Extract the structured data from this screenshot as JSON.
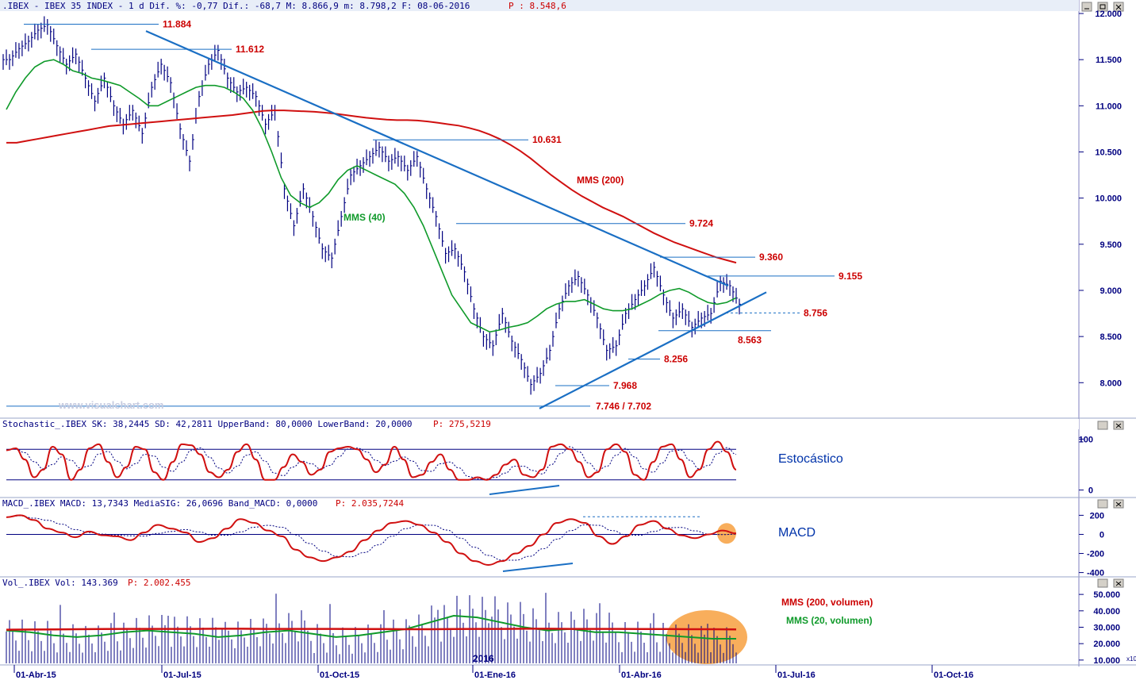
{
  "colors": {
    "price": "#000080",
    "trendline": "#1a6fc4",
    "mms200": "#d01010",
    "mms40": "#0f9a2a",
    "level_label": "#cc0000",
    "header_text": "#000080",
    "header_red": "#cc0000",
    "highlight": "#f7a040"
  },
  "panels": {
    "price": {
      "header_main": ".IBEX - IBEX 35 INDEX -  1 d Dif. %: -0,77 Dif.: -68,7 M: 8.866,9 m: 8.798,2 F: 08-06-2016",
      "header_p": "P : 8.548,6",
      "watermark": "www.visualchart.com"
    },
    "stochastic": {
      "header_main": "Stochastic_.IBEX SK: 38,2445 SD: 42,2811 UpperBand: 80,0000 LowerBand: 20,0000",
      "header_p": "P: 275,5219",
      "label": "Estocástico"
    },
    "macd": {
      "header_main": "MACD_.IBEX MACD: 13,7343 MediaSIG: 26,0696 Band_MACD: 0,0000",
      "header_p": "P: 2.035,7244",
      "label": "MACD"
    },
    "volume": {
      "header_main": "Vol_.IBEX Vol: 143.369",
      "header_p": "P: 2.002.455",
      "legend_200": "MMS (200, volumen)",
      "legend_20": "MMS (20, volumen)",
      "year_marker": "2016",
      "scale_tag": "x10"
    }
  },
  "chart_data": [
    {
      "type": "bar",
      "subtype": "ohlc",
      "title": ".IBEX - IBEX 35 INDEX",
      "x_ticks": [
        "01-Abr-15",
        "01-Jul-15",
        "01-Oct-15",
        "01-Ene-16",
        "01-Abr-16",
        "01-Jul-16",
        "01-Oct-16"
      ],
      "y_ticks": [
        "12.000",
        "11.500",
        "11.000",
        "10.500",
        "10.000",
        "9.500",
        "9.000",
        "8.500",
        "8.000"
      ],
      "ylim": [
        7650,
        12000
      ],
      "close": [
        11500,
        11620,
        11700,
        11820,
        11880,
        11650,
        11450,
        11560,
        11300,
        11050,
        11300,
        11000,
        10800,
        10950,
        10700,
        11200,
        11450,
        11250,
        10750,
        10400,
        11100,
        11450,
        11600,
        11300,
        11150,
        11200,
        11100,
        10800,
        10950,
        10100,
        9700,
        10100,
        9800,
        9450,
        9350,
        9800,
        10250,
        10350,
        10450,
        10550,
        10400,
        10450,
        10300,
        10450,
        10100,
        9800,
        9400,
        9450,
        9200,
        8800,
        8500,
        8400,
        8750,
        8450,
        8250,
        7980,
        8100,
        8350,
        8800,
        9050,
        9150,
        8950,
        8700,
        8350,
        8400,
        8750,
        8900,
        9050,
        9250,
        8950,
        8700,
        8800,
        8600,
        8700,
        8750,
        9100,
        9050,
        8850
      ],
      "series": [
        {
          "name": "MMS (200)",
          "values": [
            10600,
            10600,
            10620,
            10640,
            10660,
            10680,
            10700,
            10720,
            10740,
            10760,
            10780,
            10790,
            10800,
            10810,
            10820,
            10830,
            10840,
            10850,
            10860,
            10870,
            10880,
            10890,
            10900,
            10915,
            10930,
            10945,
            10950,
            10950,
            10945,
            10940,
            10935,
            10925,
            10915,
            10900,
            10885,
            10870,
            10860,
            10850,
            10845,
            10845,
            10840,
            10830,
            10815,
            10800,
            10785,
            10760,
            10730,
            10690,
            10640,
            10580,
            10510,
            10430,
            10340,
            10250,
            10170,
            10090,
            10020,
            9960,
            9900,
            9850,
            9800,
            9740,
            9680,
            9620,
            9570,
            9520,
            9480,
            9440,
            9400,
            9360,
            9330,
            9300
          ]
        },
        {
          "name": "MMS (40)",
          "values": [
            10960,
            11150,
            11300,
            11420,
            11480,
            11500,
            11450,
            11380,
            11350,
            11300,
            11280,
            11250,
            11220,
            11150,
            11080,
            11000,
            11000,
            11050,
            11100,
            11150,
            11200,
            11220,
            11220,
            11200,
            11150,
            11080,
            10950,
            10750,
            10500,
            10220,
            10030,
            9950,
            9900,
            9950,
            10050,
            10200,
            10300,
            10350,
            10300,
            10250,
            10200,
            10150,
            10050,
            9900,
            9700,
            9450,
            9200,
            8950,
            8800,
            8650,
            8600,
            8550,
            8570,
            8600,
            8620,
            8650,
            8720,
            8800,
            8850,
            8880,
            8880,
            8900,
            8850,
            8800,
            8780,
            8780,
            8800,
            8850,
            8900,
            8960,
            9000,
            9020,
            8980,
            8920,
            8870,
            8850,
            8870,
            8920
          ]
        },
        {
          "name": "Estocástico %K",
          "values": [
            78,
            82,
            60,
            25,
            40,
            85,
            70,
            20,
            40,
            82,
            90,
            55,
            25,
            45,
            85,
            80,
            35,
            20,
            55,
            90,
            88,
            70,
            35,
            25,
            40,
            75,
            90,
            60,
            20,
            20,
            45,
            70,
            55,
            30,
            40,
            75,
            82,
            85,
            80,
            60,
            35,
            50,
            85,
            60,
            25,
            30,
            55,
            70,
            40,
            20,
            20,
            25,
            20,
            30,
            50,
            60,
            30,
            25,
            40,
            85,
            90,
            80,
            55,
            25,
            35,
            80,
            90,
            75,
            30,
            20,
            55,
            85,
            90,
            60,
            25,
            40,
            80,
            95,
            75,
            40
          ]
        },
        {
          "name": "MACD",
          "values": [
            180,
            200,
            150,
            60,
            20,
            -30,
            30,
            -10,
            -20,
            -60,
            20,
            100,
            60,
            20,
            -80,
            -40,
            60,
            160,
            120,
            40,
            -20,
            -160,
            -240,
            -280,
            -240,
            -180,
            -60,
            40,
            120,
            140,
            100,
            20,
            -80,
            -200,
            -280,
            -320,
            -280,
            -200,
            -120,
            0,
            120,
            160,
            120,
            -20,
            -100,
            -20,
            100,
            140,
            60,
            -10,
            -40,
            0,
            40,
            10
          ]
        },
        {
          "name": "MMS (200, volumen)",
          "values": [
            28500,
            28600,
            28700,
            28800,
            28900,
            29000,
            29000,
            29000,
            29000,
            29100,
            29100,
            29000,
            29000,
            29000,
            29000,
            28900,
            28900,
            28800,
            28800,
            28900,
            29000,
            29000,
            29100,
            29100,
            29000,
            29000,
            29000,
            28900,
            28900,
            28800,
            28800,
            28700
          ]
        },
        {
          "name": "MMS (20, volumen)",
          "values": [
            28000,
            27000,
            25000,
            24000,
            25000,
            27000,
            28000,
            27000,
            26000,
            24000,
            25000,
            27000,
            28000,
            26000,
            24000,
            25000,
            27000,
            29000,
            33000,
            37000,
            36000,
            33000,
            30000,
            28000,
            29000,
            27000,
            27000,
            26000,
            25000,
            24000,
            23000,
            23000
          ]
        }
      ],
      "annotations": [
        "11.884",
        "11.612",
        "10.631",
        "9.724",
        "9.360",
        "9.155",
        "8.756",
        "8.563",
        "8.256",
        "7.968",
        "7.746 / 7.702",
        "MMS (200)",
        "MMS (40)"
      ]
    },
    {
      "type": "line",
      "title": "Stochastic_.IBEX",
      "y_ticks": [
        "100",
        "0"
      ],
      "ylim": [
        -10,
        110
      ],
      "bands": [
        80,
        20
      ]
    },
    {
      "type": "line",
      "title": "MACD_.IBEX",
      "y_ticks": [
        "200",
        "0",
        "-200",
        "-400"
      ],
      "ylim": [
        -420,
        220
      ]
    },
    {
      "type": "bar",
      "title": "Vol_.IBEX",
      "y_ticks": [
        "50.000",
        "40.000",
        "30.000",
        "20.000",
        "10.000"
      ],
      "ylim": [
        8000,
        52000
      ]
    }
  ]
}
